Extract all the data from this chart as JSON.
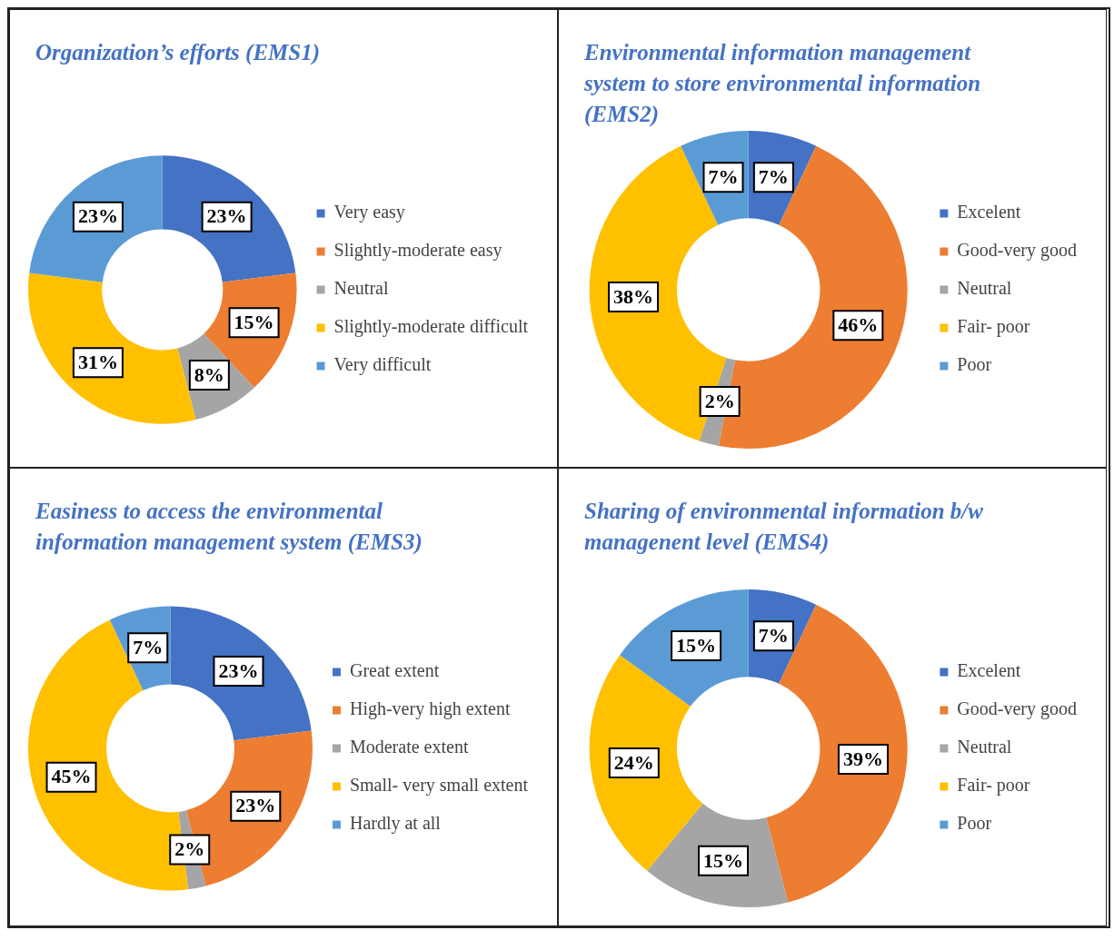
{
  "chart_data": [
    {
      "type": "donut",
      "title": "Organization’s efforts (EMS1)",
      "categories": [
        "Very easy",
        "Slightly-moderate easy",
        "Neutral",
        "Slightly-moderate difficult",
        "Very difficult"
      ],
      "values": [
        23,
        15,
        8,
        31,
        23
      ],
      "value_labels": [
        "23%",
        "15%",
        "8%",
        "31%",
        "23%"
      ],
      "colors": [
        "#4472c4",
        "#ed7d31",
        "#a5a5a5",
        "#ffc000",
        "#5b9bd5"
      ],
      "legend": "right"
    },
    {
      "type": "donut",
      "title": "Environmental information management system to store environmental information (EMS2)",
      "categories": [
        "Excelent",
        "Good-very good",
        "Neutral",
        "Fair- poor",
        "Poor"
      ],
      "values": [
        7,
        46,
        2,
        38,
        7
      ],
      "value_labels": [
        "7%",
        "46%",
        "2%",
        "38%",
        "7%"
      ],
      "colors": [
        "#4472c4",
        "#ed7d31",
        "#a5a5a5",
        "#ffc000",
        "#5b9bd5"
      ],
      "legend": "right"
    },
    {
      "type": "donut",
      "title": "Easiness to access the environmental information management system (EMS3)",
      "categories": [
        "Great extent",
        "High-very high extent",
        "Moderate extent",
        "Small- very small extent",
        "Hardly at all"
      ],
      "values": [
        23,
        23,
        2,
        45,
        7
      ],
      "value_labels": [
        "23%",
        "23%",
        "2%",
        "45%",
        "7%"
      ],
      "colors": [
        "#4472c4",
        "#ed7d31",
        "#a5a5a5",
        "#ffc000",
        "#5b9bd5"
      ],
      "legend": "right"
    },
    {
      "type": "donut",
      "title": "Sharing of environmental information b/w managenent level (EMS4)",
      "categories": [
        "Excelent",
        "Good-very good",
        "Neutral",
        "Fair- poor",
        "Poor"
      ],
      "values": [
        7,
        39,
        15,
        24,
        15
      ],
      "value_labels": [
        "7%",
        "39%",
        "15%",
        "24%",
        "15%"
      ],
      "colors": [
        "#4472c4",
        "#ed7d31",
        "#a5a5a5",
        "#ffc000",
        "#5b9bd5"
      ],
      "legend": "right"
    }
  ]
}
